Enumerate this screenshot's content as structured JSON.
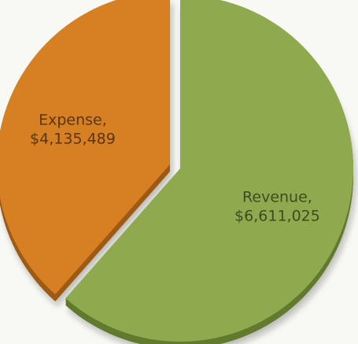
{
  "chart_data": {
    "type": "pie",
    "title": "",
    "legend": "none",
    "slices": [
      {
        "name": "Revenue",
        "value": 6611025,
        "name_label": "Revenue,",
        "value_label": "$6,611,025",
        "color": "#8faa4e",
        "side_color": "#617a2e",
        "label_color": "#3e4a22"
      },
      {
        "name": "Expense",
        "value": 4135489,
        "name_label": "Expense,",
        "value_label": "$4,135,489",
        "color": "#d67f23",
        "side_color": "#9e5a13",
        "label_color": "#5a3610"
      }
    ]
  }
}
